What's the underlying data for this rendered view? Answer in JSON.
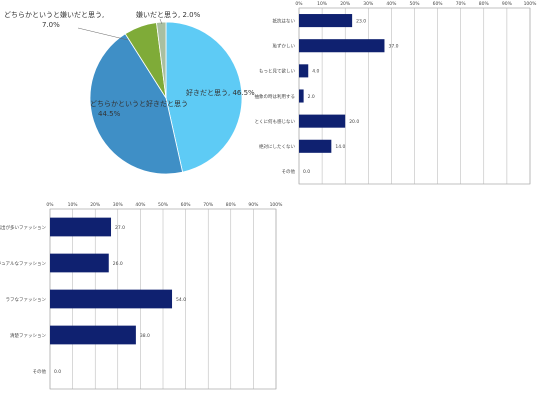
{
  "chart_data": [
    {
      "type": "pie",
      "title": "",
      "slices": [
        {
          "label": "好きだと思う, 46.5%",
          "value": 46.5,
          "color": "#5ecbf5"
        },
        {
          "label": "どちらかというと好きだと思う, 44.5%",
          "value": 44.5,
          "color": "#3f8fc6"
        },
        {
          "label": "どちらかというと嫌いだと思う, 7.0%",
          "value": 7.0,
          "color": "#7fab38"
        },
        {
          "label": "嫌いだと思う, 2.0%",
          "value": 2.0,
          "color": "#a9bfa0"
        }
      ]
    },
    {
      "type": "bar",
      "orientation": "horizontal",
      "title": "",
      "xlim": [
        0,
        100
      ],
      "ticks": [
        "0%",
        "10%",
        "20%",
        "30%",
        "40%",
        "50%",
        "60%",
        "70%",
        "80%",
        "90%",
        "100%"
      ],
      "categories": [
        "抵抗はない",
        "恥ずかしい",
        "もっと見て欲しい",
        "抽象の時は利用する",
        "とくに何も感じない",
        "絶対にしたくない",
        "その他"
      ],
      "values": [
        23.0,
        37.0,
        4.0,
        2.0,
        20.0,
        14.0,
        0.0
      ],
      "value_labels": [
        "23.0",
        "37.0",
        "4.0",
        "2.0",
        "20.0",
        "14.0",
        "0.0"
      ],
      "bar_color": "#0f2170",
      "grid": true
    },
    {
      "type": "bar",
      "orientation": "horizontal",
      "title": "",
      "xlim": [
        0,
        100
      ],
      "ticks": [
        "0%",
        "10%",
        "20%",
        "30%",
        "40%",
        "50%",
        "60%",
        "70%",
        "80%",
        "90%",
        "100%"
      ],
      "categories": [
        "露出が多いファッション",
        "カジュアルなファッション",
        "ラフなファッション",
        "清楚ファッション",
        "その他"
      ],
      "values": [
        27.0,
        26.0,
        54.0,
        38.0,
        0.0
      ],
      "value_labels": [
        "27.0",
        "26.0",
        "54.0",
        "38.0",
        "0.0"
      ],
      "bar_color": "#0f2170",
      "grid": true
    }
  ]
}
